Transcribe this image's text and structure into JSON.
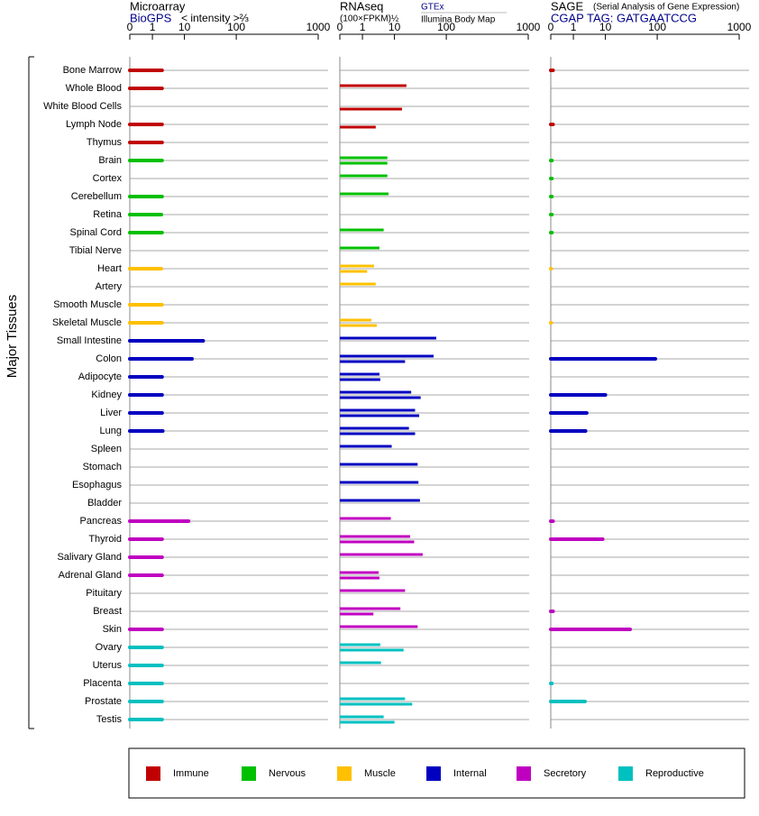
{
  "row_axis_label": "Major Tissues",
  "groups": [
    {
      "name": "Immune",
      "color": "#c00000",
      "tissues": [
        "Bone Marrow",
        "Whole Blood",
        "White Blood Cells",
        "Lymph Node",
        "Thymus"
      ]
    },
    {
      "name": "Nervous",
      "color": "#00c000",
      "tissues": [
        "Brain",
        "Cortex",
        "Cerebellum",
        "Retina",
        "Spinal Cord",
        "Tibial Nerve"
      ]
    },
    {
      "name": "Muscle",
      "color": "#ffc000",
      "tissues": [
        "Heart",
        "Artery",
        "Smooth Muscle",
        "Skeletal Muscle"
      ]
    },
    {
      "name": "Internal",
      "color": "#0000c0",
      "tissues": [
        "Small Intestine",
        "Colon",
        "Adipocyte",
        "Kidney",
        "Liver",
        "Lung",
        "Spleen",
        "Stomach",
        "Esophagus",
        "Bladder"
      ]
    },
    {
      "name": "Secretory",
      "color": "#c000c0",
      "tissues": [
        "Pancreas",
        "Thyroid",
        "Salivary Gland",
        "Adrenal Gland",
        "Pituitary",
        "Breast",
        "Skin"
      ]
    },
    {
      "name": "Reproductive",
      "color": "#00c0c0",
      "tissues": [
        "Ovary",
        "Uterus",
        "Placenta",
        "Prostate",
        "Testis"
      ]
    }
  ],
  "chart_data": [
    {
      "type": "bar",
      "title": "Microarray",
      "source": "BioGPS",
      "axis_label": "< intensity >⅔",
      "xlim": [
        0,
        1000
      ],
      "xticks": [
        0,
        1,
        10,
        100,
        1000
      ],
      "series": [
        {
          "values": [
            2,
            2,
            null,
            2,
            2,
            2,
            null,
            2,
            1.9,
            2,
            null,
            1.9,
            null,
            2,
            2,
            23,
            14,
            2,
            2,
            2,
            2.1,
            null,
            null,
            null,
            null,
            12,
            2,
            2,
            2,
            null,
            null,
            2,
            2,
            2,
            2,
            2,
            2
          ]
        }
      ]
    },
    {
      "type": "bar",
      "title": "RNAseq",
      "axis_label": "(100×FPKM)½",
      "xlim": [
        0,
        1000
      ],
      "xticks": [
        0,
        1,
        10,
        100,
        1000
      ],
      "series": [
        {
          "name": "GTEx",
          "values": [
            null,
            17,
            null,
            null,
            null,
            6,
            6,
            6.5,
            null,
            4.6,
            3.4,
            2.3,
            2.6,
            null,
            1.9,
            64,
            57,
            3.4,
            21,
            25,
            19,
            8.2,
            28,
            29,
            31,
            7.7,
            20,
            35,
            3.2,
            16,
            13,
            28,
            3.6,
            3.8,
            null,
            16,
            4.6
          ]
        },
        {
          "name": "Illumina Body Map",
          "values": [
            null,
            null,
            14,
            2.6,
            null,
            6,
            null,
            null,
            null,
            null,
            null,
            1.4,
            null,
            null,
            2.8,
            null,
            16,
            3.6,
            32,
            30,
            25,
            null,
            null,
            null,
            null,
            null,
            24,
            null,
            3.4,
            null,
            2.2,
            null,
            15,
            null,
            null,
            22,
            10
          ]
        }
      ]
    },
    {
      "type": "bar",
      "title": "SAGE",
      "subtitle": "(Serial Analysis of Gene Expression)",
      "source": "CGAP TAG: GATGAATCCG",
      "xlim": [
        0,
        1000
      ],
      "xticks": [
        0,
        1,
        10,
        100,
        1000
      ],
      "series": [
        {
          "values": [
            0.1,
            null,
            null,
            0.1,
            null,
            0.05,
            0.05,
            0.05,
            0.05,
            0.05,
            null,
            0.02,
            null,
            null,
            0.02,
            null,
            92,
            null,
            10,
            2.6,
            2.4,
            null,
            null,
            null,
            null,
            0.1,
            8.2,
            null,
            null,
            null,
            0.1,
            30,
            null,
            null,
            0.05,
            2.3,
            null
          ]
        }
      ]
    }
  ]
}
